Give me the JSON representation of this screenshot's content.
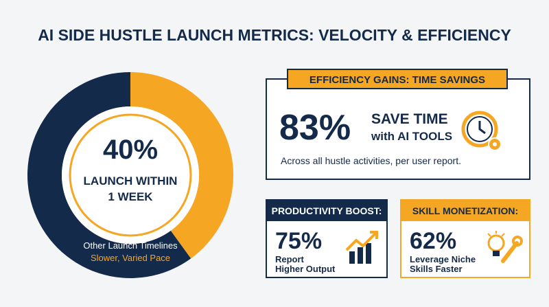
{
  "title": "AI SIDE HUSTLE LAUNCH METRICS: VELOCITY & EFFICIENCY",
  "chart_data": {
    "type": "donut",
    "categories": [
      "LAUNCH WITHIN 1 WEEK",
      "Other Launch Timelines"
    ],
    "values": [
      40,
      60
    ],
    "value_labels": [
      "40%",
      null
    ],
    "colors": [
      "#f5a623",
      "#142a4a"
    ],
    "annotation": "Slower, Varied Pace"
  },
  "efficiency": {
    "heading": "EFFICIENCY GAINS: TIME SAVINGS",
    "stat": "83%",
    "label": [
      "SAVE TIME",
      "with AI TOOLS"
    ],
    "note": "Across all hustle activities, per user report."
  },
  "productivity": {
    "heading": "PRODUCTIVITY BOOST:",
    "stat": "75%",
    "label": [
      "Report",
      "Higher Output"
    ]
  },
  "skill": {
    "heading": "SKILL MONETIZATION:",
    "stat": "62%",
    "label": [
      "Leverage Niche",
      "Skills Faster"
    ]
  }
}
